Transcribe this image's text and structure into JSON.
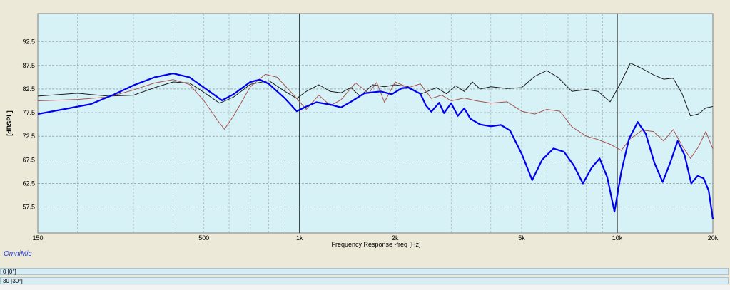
{
  "chart_data": {
    "type": "line",
    "xlabel": "Frequency Response -freq [Hz]",
    "ylabel": "[dBSPL]",
    "xscale": "log",
    "xlim": [
      150,
      20000
    ],
    "ylim": [
      52,
      98.5
    ],
    "grid": true,
    "x_tick_labels": [
      {
        "value": 150,
        "label": "150"
      },
      {
        "value": 500,
        "label": "500"
      },
      {
        "value": 1000,
        "label": "1k"
      },
      {
        "value": 2000,
        "label": "2k"
      },
      {
        "value": 5000,
        "label": "5k"
      },
      {
        "value": 10000,
        "label": "10k"
      },
      {
        "value": 20000,
        "label": "20k"
      }
    ],
    "y_ticks": [
      57.5,
      62.5,
      67.5,
      72.5,
      77.5,
      82.5,
      87.5,
      92.5
    ],
    "series": [
      {
        "color": "#0000ee",
        "points": [
          [
            150,
            77.2
          ],
          [
            180,
            78.2
          ],
          [
            220,
            79.3
          ],
          [
            260,
            81.3
          ],
          [
            300,
            83.3
          ],
          [
            350,
            85.0
          ],
          [
            400,
            85.8
          ],
          [
            450,
            85.0
          ],
          [
            520,
            82.0
          ],
          [
            570,
            80.1
          ],
          [
            620,
            81.4
          ],
          [
            700,
            84.0
          ],
          [
            750,
            84.5
          ],
          [
            800,
            83.6
          ],
          [
            900,
            80.5
          ],
          [
            980,
            77.8
          ],
          [
            1050,
            78.8
          ],
          [
            1130,
            79.7
          ],
          [
            1250,
            79.2
          ],
          [
            1350,
            78.6
          ],
          [
            1450,
            79.8
          ],
          [
            1600,
            81.6
          ],
          [
            1800,
            82.0
          ],
          [
            1950,
            81.4
          ],
          [
            2100,
            82.7
          ],
          [
            2200,
            82.8
          ],
          [
            2400,
            81.5
          ],
          [
            2500,
            79.0
          ],
          [
            2600,
            77.7
          ],
          [
            2750,
            79.6
          ],
          [
            2850,
            77.4
          ],
          [
            3000,
            79.5
          ],
          [
            3150,
            76.8
          ],
          [
            3300,
            78.4
          ],
          [
            3450,
            76.2
          ],
          [
            3700,
            75.0
          ],
          [
            4000,
            74.6
          ],
          [
            4300,
            74.9
          ],
          [
            4600,
            73.7
          ],
          [
            5000,
            68.8
          ],
          [
            5400,
            63.2
          ],
          [
            5800,
            67.5
          ],
          [
            6300,
            69.9
          ],
          [
            6800,
            69.2
          ],
          [
            7300,
            66.3
          ],
          [
            7800,
            62.5
          ],
          [
            8300,
            65.8
          ],
          [
            8800,
            67.8
          ],
          [
            9300,
            63.8
          ],
          [
            9800,
            56.5
          ],
          [
            10300,
            65.0
          ],
          [
            10900,
            72.0
          ],
          [
            11600,
            75.5
          ],
          [
            12300,
            73.0
          ],
          [
            13100,
            66.8
          ],
          [
            13900,
            62.8
          ],
          [
            14700,
            67.0
          ],
          [
            15500,
            71.5
          ],
          [
            16300,
            68.5
          ],
          [
            17100,
            62.5
          ],
          [
            17900,
            64.1
          ],
          [
            18700,
            63.6
          ],
          [
            19400,
            61.0
          ],
          [
            20000,
            55.0
          ]
        ]
      },
      {
        "color": "#a85050",
        "points": [
          [
            150,
            80.0
          ],
          [
            200,
            80.3
          ],
          [
            250,
            80.8
          ],
          [
            300,
            82.3
          ],
          [
            350,
            83.8
          ],
          [
            400,
            84.5
          ],
          [
            450,
            83.5
          ],
          [
            500,
            80.0
          ],
          [
            550,
            76.0
          ],
          [
            580,
            74.0
          ],
          [
            620,
            76.8
          ],
          [
            700,
            83.0
          ],
          [
            780,
            85.6
          ],
          [
            850,
            85.0
          ],
          [
            950,
            81.5
          ],
          [
            1050,
            78.2
          ],
          [
            1150,
            81.2
          ],
          [
            1250,
            79.0
          ],
          [
            1350,
            80.2
          ],
          [
            1500,
            83.8
          ],
          [
            1650,
            81.6
          ],
          [
            1750,
            83.9
          ],
          [
            1850,
            79.7
          ],
          [
            2000,
            84.0
          ],
          [
            2200,
            82.8
          ],
          [
            2400,
            83.6
          ],
          [
            2600,
            80.5
          ],
          [
            2800,
            81.2
          ],
          [
            3000,
            80.0
          ],
          [
            3300,
            80.6
          ],
          [
            3600,
            80.0
          ],
          [
            4000,
            79.5
          ],
          [
            4500,
            79.8
          ],
          [
            5000,
            77.8
          ],
          [
            5500,
            77.2
          ],
          [
            6000,
            78.2
          ],
          [
            6600,
            77.8
          ],
          [
            7200,
            74.5
          ],
          [
            8000,
            72.5
          ],
          [
            8700,
            71.8
          ],
          [
            9500,
            70.8
          ],
          [
            10300,
            69.5
          ],
          [
            11000,
            72.0
          ],
          [
            12000,
            73.8
          ],
          [
            13000,
            73.5
          ],
          [
            14000,
            71.5
          ],
          [
            15000,
            73.9
          ],
          [
            16000,
            70.5
          ],
          [
            17000,
            67.8
          ],
          [
            18000,
            70.2
          ],
          [
            19000,
            73.5
          ],
          [
            20000,
            69.8
          ]
        ]
      },
      {
        "color": "#1a1a1a",
        "points": [
          [
            150,
            81.0
          ],
          [
            200,
            81.6
          ],
          [
            250,
            81.0
          ],
          [
            300,
            81.2
          ],
          [
            350,
            82.8
          ],
          [
            400,
            84.0
          ],
          [
            450,
            83.8
          ],
          [
            500,
            81.8
          ],
          [
            560,
            79.5
          ],
          [
            620,
            80.8
          ],
          [
            700,
            83.5
          ],
          [
            800,
            84.3
          ],
          [
            900,
            82.0
          ],
          [
            980,
            80.5
          ],
          [
            1050,
            82.0
          ],
          [
            1150,
            83.4
          ],
          [
            1250,
            82.0
          ],
          [
            1350,
            81.7
          ],
          [
            1450,
            82.8
          ],
          [
            1550,
            81.0
          ],
          [
            1700,
            83.4
          ],
          [
            1850,
            83.0
          ],
          [
            2000,
            83.4
          ],
          [
            2200,
            83.0
          ],
          [
            2400,
            81.4
          ],
          [
            2700,
            82.8
          ],
          [
            2900,
            81.5
          ],
          [
            3100,
            83.2
          ],
          [
            3300,
            82.0
          ],
          [
            3500,
            84.0
          ],
          [
            3700,
            82.5
          ],
          [
            4000,
            83.0
          ],
          [
            4500,
            82.6
          ],
          [
            5000,
            82.8
          ],
          [
            5500,
            85.2
          ],
          [
            6000,
            86.4
          ],
          [
            6500,
            85.0
          ],
          [
            7200,
            82.0
          ],
          [
            8000,
            82.4
          ],
          [
            8700,
            82.0
          ],
          [
            9500,
            79.8
          ],
          [
            10200,
            83.5
          ],
          [
            11000,
            88.0
          ],
          [
            12000,
            86.8
          ],
          [
            13000,
            85.5
          ],
          [
            14000,
            84.6
          ],
          [
            15000,
            84.8
          ],
          [
            16000,
            81.5
          ],
          [
            17000,
            76.8
          ],
          [
            18000,
            77.2
          ],
          [
            19000,
            78.5
          ],
          [
            20000,
            78.8
          ]
        ]
      }
    ]
  },
  "branding": {
    "name": "OmniMic"
  },
  "legend": {
    "rows": [
      "0 [0°]",
      "30 [30°]"
    ]
  }
}
